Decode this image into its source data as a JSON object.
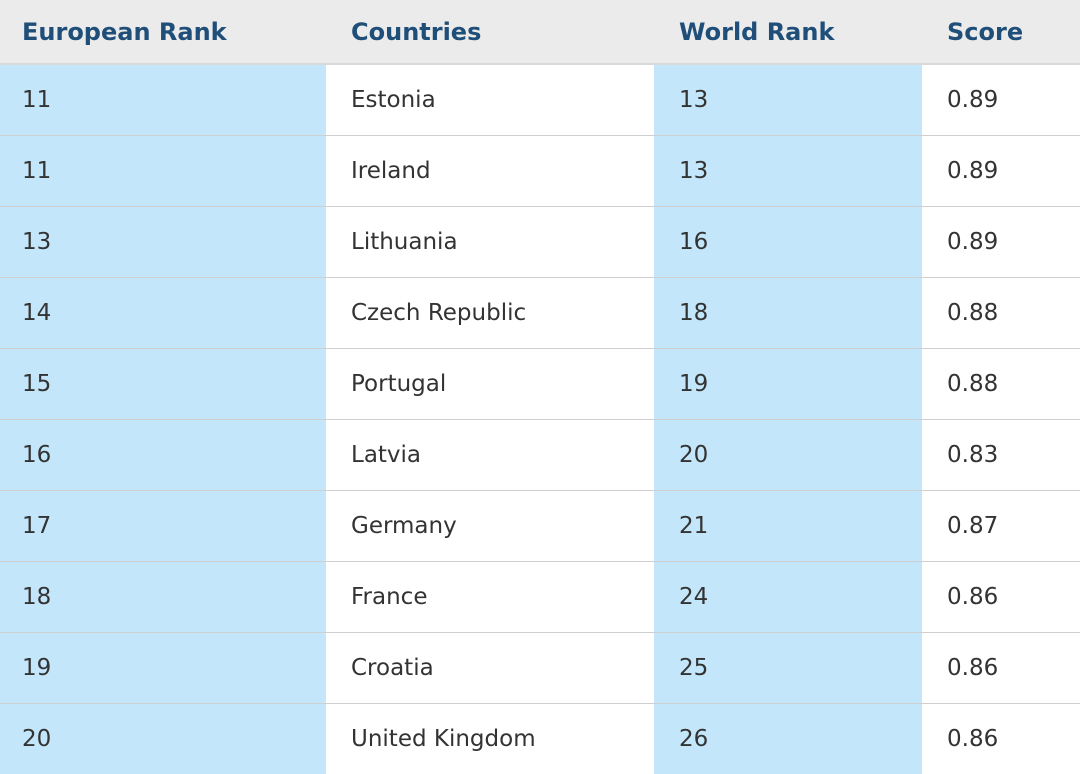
{
  "table": {
    "headers": [
      "European Rank",
      "Countries",
      "World Rank",
      "Score"
    ],
    "rows": [
      [
        "11",
        "Estonia",
        "13",
        "0.89"
      ],
      [
        "11",
        "Ireland",
        "13",
        "0.89"
      ],
      [
        "13",
        "Lithuania",
        "16",
        "0.89"
      ],
      [
        "14",
        "Czech Republic",
        "18",
        "0.88"
      ],
      [
        "15",
        "Portugal",
        "19",
        "0.88"
      ],
      [
        "16",
        "Latvia",
        "20",
        "0.83"
      ],
      [
        "17",
        "Germany",
        "21",
        "0.87"
      ],
      [
        "18",
        "France",
        "24",
        "0.86"
      ],
      [
        "19",
        "Croatia",
        "25",
        "0.86"
      ],
      [
        "20",
        "United Kingdom",
        "26",
        "0.86"
      ]
    ]
  },
  "colors": {
    "header_text": "#1f4e79",
    "header_background": "#ebebeb",
    "highlight_column_background": "#c3e6fa"
  }
}
